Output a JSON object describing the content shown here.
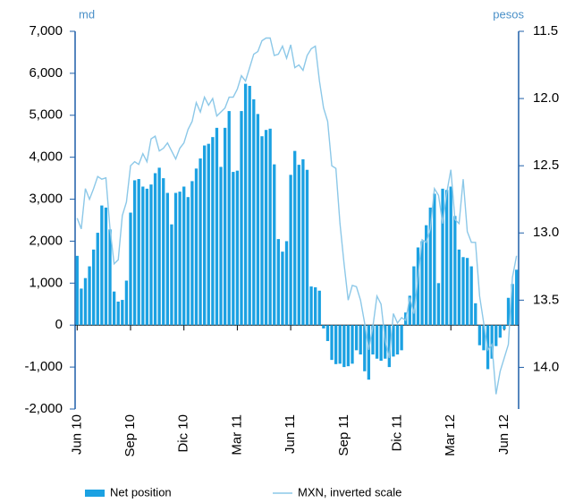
{
  "chart_data": {
    "type": "bar",
    "y_unit": "md",
    "y2_unit": "pesos",
    "categories": [
      "Jun 10",
      null,
      null,
      null,
      null,
      null,
      null,
      null,
      null,
      null,
      null,
      null,
      null,
      "Sep 10",
      null,
      null,
      null,
      null,
      null,
      null,
      null,
      null,
      null,
      null,
      null,
      null,
      "Dic 10",
      null,
      null,
      null,
      null,
      null,
      null,
      null,
      null,
      null,
      null,
      null,
      null,
      "Mar 11",
      null,
      null,
      null,
      null,
      null,
      null,
      null,
      null,
      null,
      null,
      null,
      null,
      "Jun 11",
      null,
      null,
      null,
      null,
      null,
      null,
      null,
      null,
      null,
      null,
      null,
      null,
      "Sep 11",
      null,
      null,
      null,
      null,
      null,
      null,
      null,
      null,
      null,
      null,
      null,
      null,
      "Dic 11",
      null,
      null,
      null,
      null,
      null,
      null,
      null,
      null,
      null,
      null,
      null,
      null,
      "Mar 12",
      null,
      null,
      null,
      null,
      null,
      null,
      null,
      null,
      null,
      null,
      null,
      null,
      "Jun 12",
      null,
      null,
      null
    ],
    "series": [
      {
        "name": "Net position",
        "color": "#1ba1e2",
        "values": [
          1650,
          870,
          1120,
          1400,
          1800,
          2200,
          2850,
          2800,
          2280,
          800,
          560,
          600,
          1060,
          2680,
          3450,
          3480,
          3300,
          3250,
          3350,
          3620,
          3750,
          3500,
          3150,
          2400,
          3150,
          3180,
          3300,
          3050,
          3430,
          3730,
          3970,
          4280,
          4320,
          4480,
          4700,
          3770,
          4700,
          5100,
          3650,
          3680,
          5100,
          5750,
          5700,
          5380,
          5030,
          4500,
          4650,
          4680,
          3830,
          2050,
          1750,
          2000,
          3580,
          4150,
          3820,
          3950,
          3700,
          920,
          900,
          820,
          -80,
          -380,
          -830,
          -930,
          -920,
          -1000,
          -980,
          -920,
          -600,
          -700,
          -1100,
          -1300,
          -700,
          -800,
          -850,
          -800,
          -1000,
          -750,
          -700,
          -600,
          300,
          700,
          1400,
          1850,
          2000,
          2380,
          2800,
          3130,
          1000,
          3250,
          3220,
          3300,
          2600,
          1800,
          1620,
          1600,
          1400,
          520,
          -480,
          -600,
          -1050,
          -800,
          -500,
          -300,
          -100,
          650,
          980,
          1320
        ]
      },
      {
        "name": "MXN, inverted scale",
        "color": "#8cc8e8",
        "type": "line",
        "axis": "y2",
        "values": [
          12.89,
          12.97,
          12.67,
          12.75,
          12.67,
          12.58,
          12.6,
          12.59,
          12.97,
          13.23,
          13.2,
          12.87,
          12.77,
          12.5,
          12.47,
          12.49,
          12.41,
          12.47,
          12.3,
          12.28,
          12.39,
          12.37,
          12.33,
          12.39,
          12.45,
          12.37,
          12.33,
          12.23,
          12.17,
          12.03,
          12.1,
          11.99,
          12.05,
          12.0,
          12.13,
          12.1,
          12.07,
          11.99,
          11.99,
          11.93,
          11.83,
          11.87,
          11.77,
          11.67,
          11.65,
          11.57,
          11.55,
          11.55,
          11.68,
          11.67,
          11.61,
          11.7,
          11.6,
          11.77,
          11.75,
          11.79,
          11.68,
          11.63,
          11.61,
          11.87,
          12.07,
          12.17,
          12.5,
          12.52,
          12.93,
          13.23,
          13.5,
          13.39,
          13.4,
          13.5,
          13.67,
          13.87,
          13.7,
          13.47,
          13.53,
          13.8,
          13.93,
          13.6,
          13.67,
          13.63,
          13.65,
          13.48,
          13.6,
          13.33,
          13.05,
          13.07,
          12.97,
          12.67,
          12.72,
          12.93,
          12.7,
          12.53,
          12.9,
          12.93,
          12.6,
          12.99,
          13.07,
          13.07,
          13.47,
          13.67,
          13.87,
          13.83,
          14.2,
          14.03,
          13.93,
          13.83,
          13.33,
          13.17
        ]
      }
    ],
    "ylim": [
      -2000,
      7000
    ],
    "yticks": [
      {
        "value": -2000,
        "label": "-2,000"
      },
      {
        "value": -1000,
        "label": "-1,000"
      },
      0,
      {
        "value": 1000,
        "label": "1,000"
      },
      {
        "value": 2000,
        "label": "2,000"
      },
      {
        "value": 3000,
        "label": "3,000"
      },
      {
        "value": 4000,
        "label": "4,000"
      },
      {
        "value": 5000,
        "label": "5,000"
      },
      {
        "value": 6000,
        "label": "6,000"
      },
      {
        "value": 7000,
        "label": "7,000"
      }
    ],
    "y2lim": [
      11.5,
      14.31
    ],
    "y2_inverted": true,
    "y2ticks": [
      11.5,
      {
        "value": 12,
        "label": "12.0"
      },
      12.5,
      {
        "value": 13,
        "label": "13.0"
      },
      13.5,
      {
        "value": 14,
        "label": "14.0"
      }
    ],
    "grid": false,
    "legend": "bottom"
  }
}
